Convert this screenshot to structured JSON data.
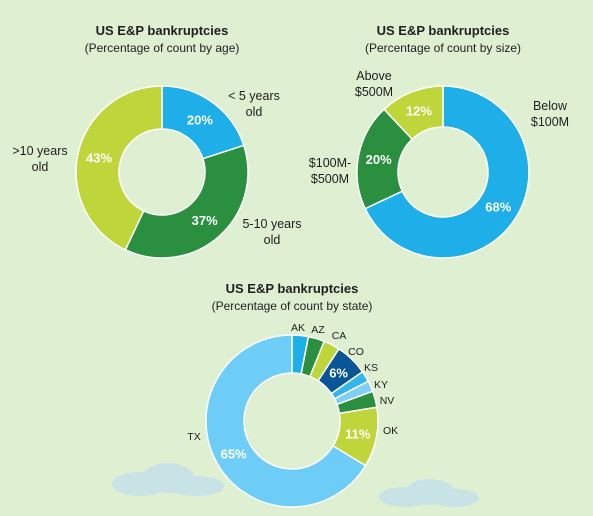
{
  "chart_data": [
    {
      "type": "donut",
      "title": "US E&P bankruptcies",
      "subtitle": "(Percentage of count by age)",
      "categories": [
        "< 5 years old",
        "5-10 years old",
        ">10 years old"
      ],
      "values": [
        20,
        37,
        43
      ],
      "value_labels": [
        "20%",
        "37%",
        "43%"
      ],
      "category_labels": [
        [
          "< 5 years",
          "old"
        ],
        [
          "5-10 years",
          "old"
        ],
        [
          ">10 years",
          "old"
        ]
      ],
      "colors": [
        "#1eaee8",
        "#2a9040",
        "#bfd63a"
      ]
    },
    {
      "type": "donut",
      "title": "US E&P bankruptcies",
      "subtitle": "(Percentage of count by size)",
      "categories": [
        "Below $100M",
        "$100M-$500M",
        "Above $500M"
      ],
      "values": [
        68,
        20,
        12
      ],
      "value_labels": [
        "68%",
        "20%",
        "12%"
      ],
      "category_labels": [
        [
          "Below",
          "$100M"
        ],
        [
          "$100M-",
          "$500M"
        ],
        [
          "Above",
          "$500M"
        ]
      ],
      "colors": [
        "#1eaee8",
        "#2a9040",
        "#bfd63a"
      ]
    },
    {
      "type": "donut",
      "title": "US E&P bankruptcies",
      "subtitle": "(Percentage of count by state)",
      "categories": [
        "AK",
        "AZ",
        "CA",
        "CO",
        "KS",
        "KY",
        "NV",
        "OK",
        "TX"
      ],
      "values": [
        3,
        3,
        3,
        6,
        2,
        2,
        3,
        11,
        65
      ],
      "value_labels": [
        "",
        "",
        "",
        "6%",
        "",
        "",
        "",
        "11%",
        "65%"
      ],
      "colors": [
        "#1eaee8",
        "#2a9040",
        "#bfd63a",
        "#0a5596",
        "#34b6ea",
        "#7fd0f4",
        "#2a9040",
        "#bfd63a",
        "#6dcdf6"
      ]
    }
  ]
}
